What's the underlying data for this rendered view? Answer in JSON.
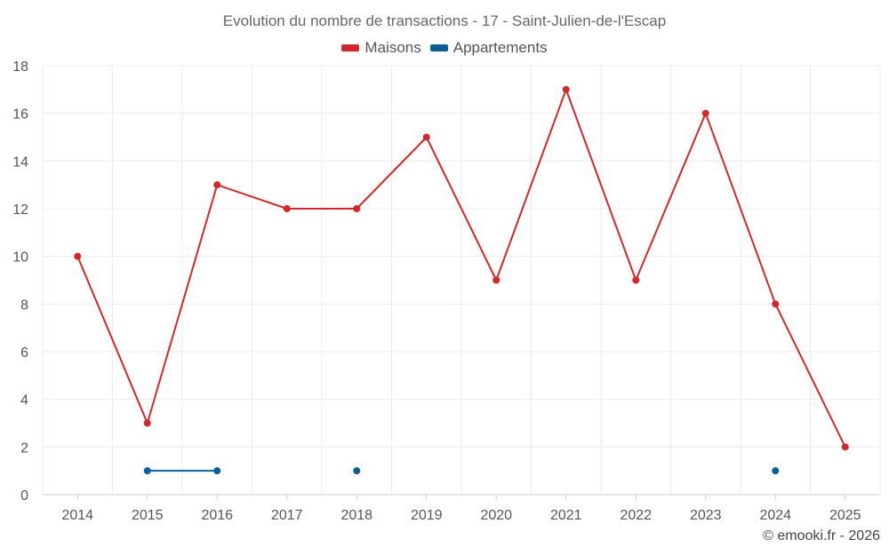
{
  "chart_data": {
    "type": "line",
    "title": "Evolution du nombre de transactions - 17 - Saint-Julien-de-l'Escap",
    "x": [
      "2014",
      "2015",
      "2016",
      "2017",
      "2018",
      "2019",
      "2020",
      "2021",
      "2022",
      "2023",
      "2024",
      "2025"
    ],
    "ylim": [
      0,
      18
    ],
    "yticks": [
      0,
      2,
      4,
      6,
      8,
      10,
      12,
      14,
      16,
      18
    ],
    "grid": true,
    "legend": "top-center",
    "series": [
      {
        "name": "Maisons",
        "color": "#d62728",
        "values": [
          10,
          3,
          13,
          12,
          12,
          15,
          9,
          17,
          9,
          16,
          8,
          2
        ]
      },
      {
        "name": "Appartements",
        "color": "#0c5e96",
        "values": [
          null,
          1,
          1,
          null,
          1,
          null,
          null,
          null,
          null,
          null,
          1,
          null
        ]
      }
    ]
  },
  "credit": "© emooki.fr - 2026"
}
